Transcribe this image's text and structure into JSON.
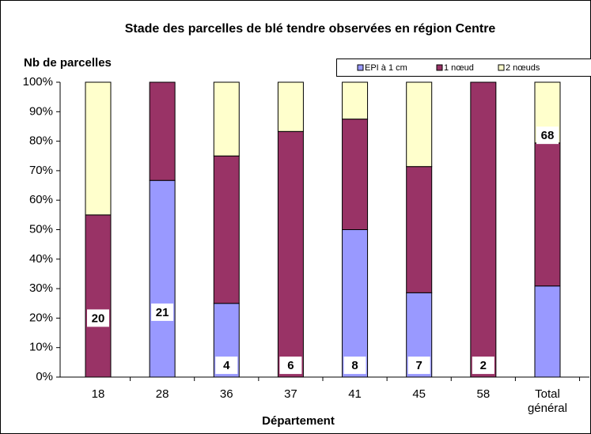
{
  "chart_data": {
    "type": "bar",
    "stacked": true,
    "title": "Stade des parcelles de blé tendre observées en région Centre",
    "y_label": "Nb de parcelles",
    "x_label": "Département",
    "categories": [
      "18",
      "28",
      "36",
      "37",
      "41",
      "45",
      "58",
      "Total général"
    ],
    "series": [
      {
        "name": "EPI à 1 cm",
        "color": "#9999ff",
        "values": [
          0,
          66.7,
          25,
          0,
          50,
          28.6,
          0,
          30.9
        ]
      },
      {
        "name": "1 nœud",
        "color": "#993366",
        "values": [
          55,
          33.3,
          50,
          83.3,
          37.5,
          42.8,
          100,
          48.5
        ]
      },
      {
        "name": "2 nœuds",
        "color": "#ffffcc",
        "values": [
          45,
          0,
          25,
          16.7,
          12.5,
          28.6,
          0,
          20.6
        ]
      }
    ],
    "counts": [
      20,
      21,
      4,
      6,
      8,
      7,
      2,
      68
    ],
    "ylim": [
      0,
      100
    ],
    "yticks": [
      {
        "value": 0,
        "label": "0%"
      },
      {
        "value": 10,
        "label": "10%"
      },
      {
        "value": 20,
        "label": "20%"
      },
      {
        "value": 30,
        "label": "30%"
      },
      {
        "value": 40,
        "label": "40%"
      },
      {
        "value": 50,
        "label": "50%"
      },
      {
        "value": 60,
        "label": "60%"
      },
      {
        "value": 70,
        "label": "70%"
      },
      {
        "value": 80,
        "label": "80%"
      },
      {
        "value": 90,
        "label": "90%"
      },
      {
        "value": 100,
        "label": "100%"
      }
    ],
    "legend": "top-right"
  }
}
